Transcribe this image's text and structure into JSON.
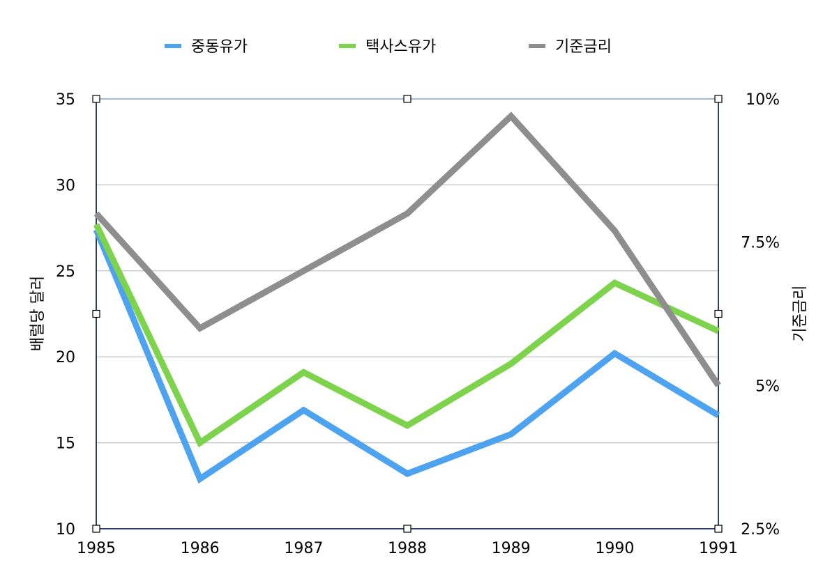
{
  "chart_data": {
    "type": "line",
    "x": [
      "1985",
      "1986",
      "1987",
      "1988",
      "1989",
      "1990",
      "1991"
    ],
    "series": [
      {
        "name": "중동유가",
        "axis": "left",
        "color": "#4da3f0",
        "values": [
          27.4,
          12.9,
          16.9,
          13.2,
          15.5,
          20.2,
          16.6
        ]
      },
      {
        "name": "택사스유가",
        "axis": "left",
        "color": "#7ed34c",
        "values": [
          27.7,
          15.0,
          19.1,
          16.0,
          19.6,
          24.3,
          21.5
        ]
      },
      {
        "name": "기준금리",
        "axis": "right",
        "color": "#8e8e8e",
        "values": [
          0.08,
          0.06,
          0.07,
          0.08,
          0.097,
          0.077,
          0.05
        ]
      }
    ],
    "ylabel": "배럴당 달러",
    "ylim": [
      10,
      35
    ],
    "yticks": [
      "10",
      "15",
      "20",
      "25",
      "30",
      "35"
    ],
    "y2label": "기준금리",
    "y2lim": [
      0.025,
      0.1
    ],
    "y2ticks": [
      "2.5%",
      "5%",
      "7.5%",
      "10%"
    ],
    "grid": true,
    "legend": "top"
  }
}
